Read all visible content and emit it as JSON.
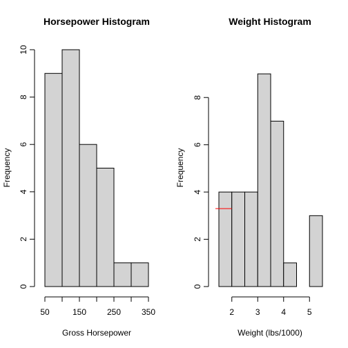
{
  "chart_data": [
    {
      "type": "bar",
      "title": "Horsepower Histogram",
      "xlabel": "Gross Horsepower",
      "ylabel": "Frequency",
      "bin_edges": [
        50,
        100,
        150,
        200,
        250,
        300,
        350
      ],
      "values": [
        9,
        10,
        6,
        5,
        1,
        1
      ],
      "xlim": [
        50,
        350
      ],
      "ylim": [
        0,
        10
      ],
      "x_ticks": [
        50,
        100,
        150,
        200,
        250,
        300,
        350
      ],
      "x_tick_labels": [
        "50",
        "",
        "150",
        "",
        "250",
        "",
        "350"
      ],
      "y_ticks": [
        0,
        2,
        4,
        6,
        8,
        10
      ],
      "y_tick_labels": [
        "0",
        "2",
        "4",
        "6",
        "8",
        "10"
      ],
      "grid": false,
      "bar_fill": "#d3d3d3",
      "bar_edge": "#000000"
    },
    {
      "type": "bar",
      "title": "Weight Histogram",
      "xlabel": "Weight (lbs/1000)",
      "ylabel": "Frequency",
      "bin_edges": [
        1.5,
        2.0,
        2.5,
        3.0,
        3.5,
        4.0,
        4.5,
        5.0,
        5.5
      ],
      "values": [
        4,
        4,
        4,
        9,
        7,
        1,
        0,
        3
      ],
      "xlim": [
        1.5,
        5.5
      ],
      "ylim": [
        0,
        9
      ],
      "x_ticks": [
        2,
        3,
        4,
        5
      ],
      "x_tick_labels": [
        "2",
        "3",
        "4",
        "5"
      ],
      "y_ticks": [
        0,
        2,
        4,
        6,
        8
      ],
      "y_tick_labels": [
        "0",
        "2",
        "4",
        "6",
        "8"
      ],
      "grid": false,
      "bar_fill": "#d3d3d3",
      "bar_edge": "#000000",
      "annotation_line": {
        "x_from": 1.5,
        "x_to": 2.0,
        "y": 3.3,
        "color": "#ff0000"
      }
    }
  ]
}
